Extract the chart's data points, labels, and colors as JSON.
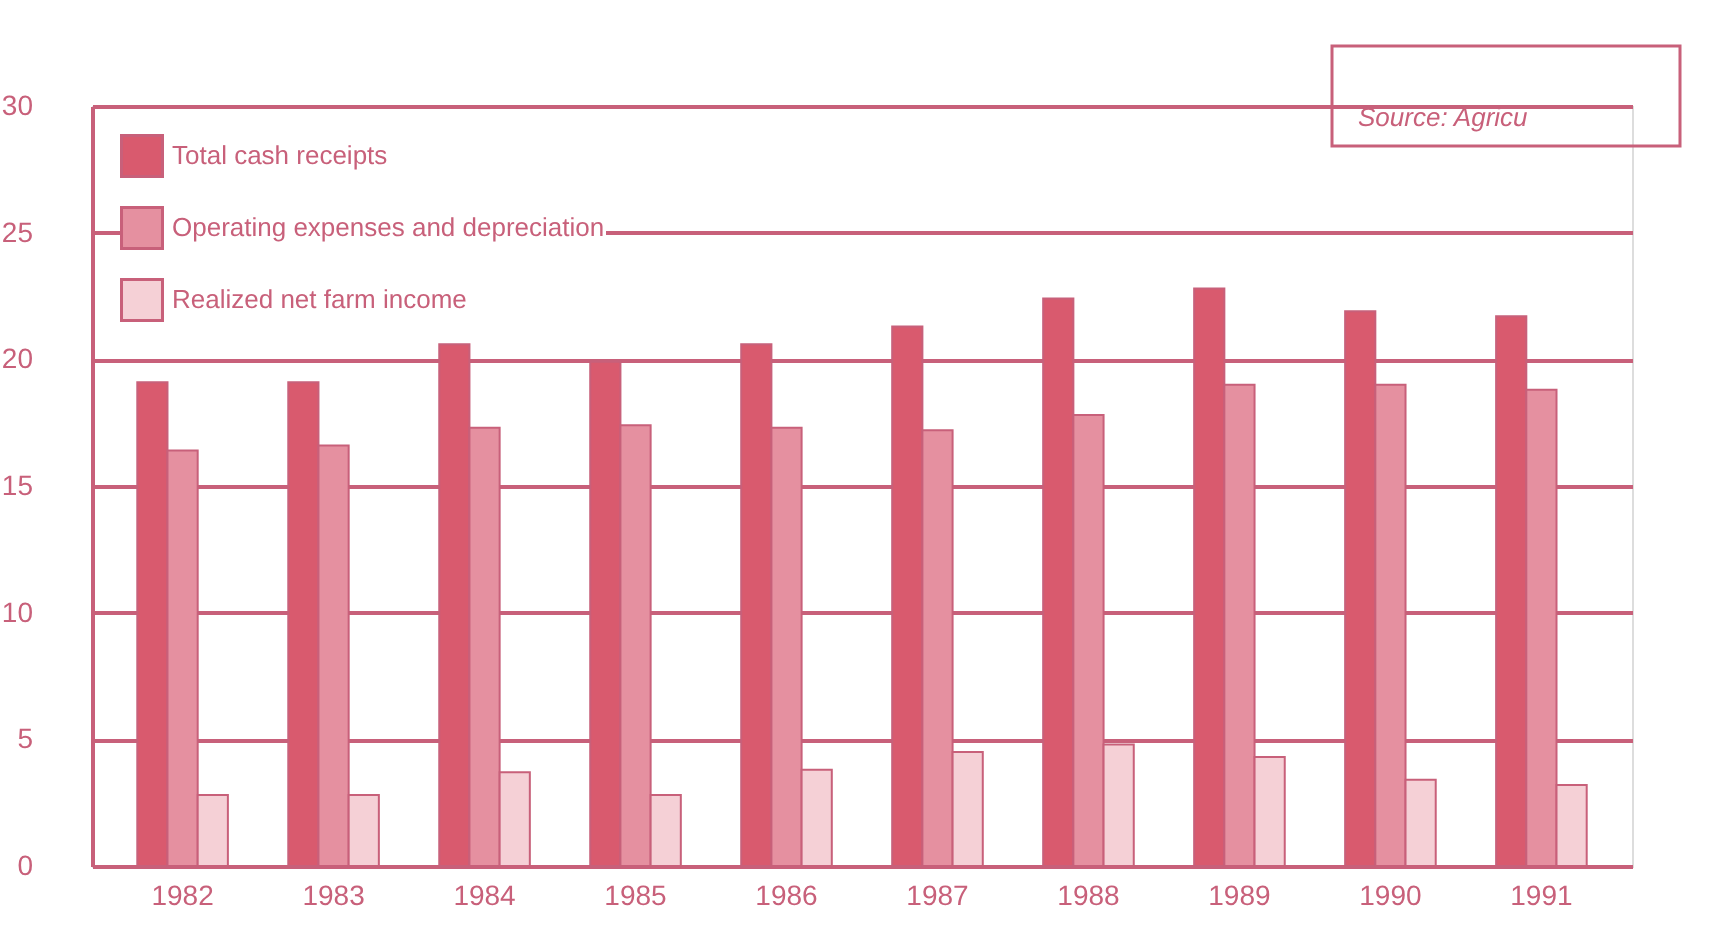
{
  "chart_data": {
    "type": "bar",
    "categories": [
      "1982",
      "1983",
      "1984",
      "1985",
      "1986",
      "1987",
      "1988",
      "1989",
      "1990",
      "1991"
    ],
    "series": [
      {
        "name": "Total cash receipts",
        "color": "#d95a6e",
        "values": [
          19.1,
          19.1,
          20.6,
          19.9,
          20.6,
          21.3,
          22.4,
          22.8,
          21.9,
          21.7
        ]
      },
      {
        "name": "Operating expenses and depreciation",
        "color": "#e590a0",
        "values": [
          16.4,
          16.6,
          17.3,
          17.4,
          17.3,
          17.2,
          17.8,
          19.0,
          19.0,
          18.8
        ]
      },
      {
        "name": "Realized net farm income",
        "color": "#f5d0d6",
        "values": [
          2.8,
          2.8,
          3.7,
          2.8,
          3.8,
          4.5,
          4.8,
          4.3,
          3.4,
          3.2
        ]
      }
    ],
    "ylim": [
      0,
      30
    ],
    "yticks": [
      0,
      5,
      10,
      15,
      20,
      25,
      30
    ],
    "grid": "y",
    "legend": "top left",
    "annotations": [
      "Source:  Agricu"
    ]
  }
}
